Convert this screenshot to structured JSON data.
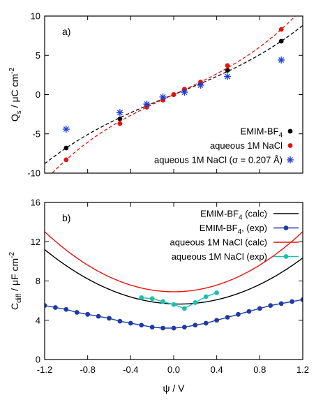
{
  "chart_data": [
    {
      "type": "scatter",
      "panel_label": "a)",
      "ylabel": {
        "main": "Q",
        "sub": "s",
        "unit": " / μC cm",
        "sup": "-2"
      },
      "xlabel": "",
      "xlim": [
        -1.2,
        1.2
      ],
      "ylim": [
        -10,
        10
      ],
      "yticks": [
        "-10",
        "-5",
        "0",
        "5",
        "10"
      ],
      "ytick_values": [
        -10,
        -5,
        0,
        5,
        10
      ],
      "xtick_values": [
        -1.2,
        -0.8,
        -0.4,
        0,
        0.4,
        0.8,
        1.2
      ],
      "legend_position": "bottom-right",
      "series": [
        {
          "name": {
            "main": "EMIM-BF",
            "sub": "4"
          },
          "color": "#000000",
          "marker": "circle",
          "x": [
            -1.0,
            -0.5,
            -0.25,
            -0.1,
            0.0,
            0.1,
            0.25,
            0.5,
            1.0
          ],
          "y": [
            -6.8,
            -3.1,
            -1.4,
            -0.6,
            0.0,
            0.6,
            1.4,
            3.1,
            6.8
          ],
          "fit": {
            "style": "dashed",
            "coef": [
              0.0,
              5.58,
              0.0,
              1.22
            ]
          }
        },
        {
          "name": "aqueous 1M NaCl",
          "color": "#e8120c",
          "marker": "circle",
          "x": [
            -1.0,
            -0.5,
            -0.25,
            -0.1,
            0.0,
            0.1,
            0.25,
            0.5,
            1.0
          ],
          "y": [
            -8.3,
            -3.7,
            -1.6,
            -0.7,
            0.0,
            0.7,
            1.6,
            3.7,
            8.3
          ],
          "fit": {
            "style": "dashed",
            "coef": [
              0.0,
              6.3,
              0.0,
              2.0
            ]
          }
        },
        {
          "name": "aqueous 1M NaCl (σ = 0.207 Å)",
          "color": "#1f3fd8",
          "marker": "asterisk",
          "x": [
            -1.0,
            -0.5,
            -0.25,
            -0.1,
            0.1,
            0.25,
            0.5,
            1.0
          ],
          "y": [
            -4.4,
            -2.3,
            -1.2,
            -0.3,
            0.3,
            1.2,
            2.3,
            4.4
          ]
        }
      ]
    },
    {
      "type": "line",
      "panel_label": "b)",
      "ylabel": {
        "main": "C",
        "sub": "diff",
        "unit": " / μF cm",
        "sup": "-2"
      },
      "xlabel": "ψ / V",
      "xlim": [
        -1.2,
        1.2
      ],
      "ylim": [
        0,
        16
      ],
      "xticks": [
        "-1.2",
        "-0.8",
        "-0.4",
        "0.0",
        "0.4",
        "0.8",
        "1.2"
      ],
      "xtick_values": [
        -1.2,
        -0.8,
        -0.4,
        0.0,
        0.4,
        0.8,
        1.2
      ],
      "yticks": [
        "0",
        "4",
        "8",
        "12",
        "16"
      ],
      "ytick_values": [
        0,
        4,
        8,
        12,
        16
      ],
      "legend_position": "top-right",
      "series": [
        {
          "name": {
            "main": "EMIM-BF",
            "sub": "4",
            "rest": " (calc)"
          },
          "color": "#000000",
          "marker": "none",
          "parabola": {
            "min_x": 0.05,
            "min_y": 5.65,
            "a": 3.55
          }
        },
        {
          "name": {
            "main": "EMIM-BF",
            "sub": "4",
            "rest": ", (exp)"
          },
          "color": "#1f3aa6",
          "marker": "circle",
          "x": [
            -1.2,
            -1.1,
            -1.0,
            -0.9,
            -0.8,
            -0.7,
            -0.6,
            -0.5,
            -0.4,
            -0.3,
            -0.2,
            -0.1,
            0.0,
            0.1,
            0.2,
            0.3,
            0.4,
            0.5,
            0.6,
            0.7,
            0.8,
            0.9,
            1.0,
            1.1,
            1.2
          ],
          "y": [
            5.5,
            5.3,
            5.1,
            4.8,
            4.6,
            4.4,
            4.2,
            3.9,
            3.7,
            3.5,
            3.3,
            3.2,
            3.2,
            3.3,
            3.5,
            3.7,
            4.0,
            4.3,
            4.6,
            4.9,
            5.2,
            5.5,
            5.7,
            5.9,
            6.1
          ]
        },
        {
          "name": "aqueous 1M NaCl (calc)",
          "color": "#e8120c",
          "marker": "none",
          "parabola": {
            "min_x": 0.0,
            "min_y": 6.9,
            "a": 4.25
          }
        },
        {
          "name": "aqueous 1M NaCl (exp)",
          "color": "#1bbfae",
          "marker": "circle",
          "x": [
            -0.3,
            -0.2,
            -0.1,
            0.0,
            0.1,
            0.2,
            0.3,
            0.4
          ],
          "y": [
            6.3,
            6.2,
            5.9,
            5.6,
            5.2,
            5.8,
            6.4,
            6.8
          ]
        }
      ]
    }
  ]
}
